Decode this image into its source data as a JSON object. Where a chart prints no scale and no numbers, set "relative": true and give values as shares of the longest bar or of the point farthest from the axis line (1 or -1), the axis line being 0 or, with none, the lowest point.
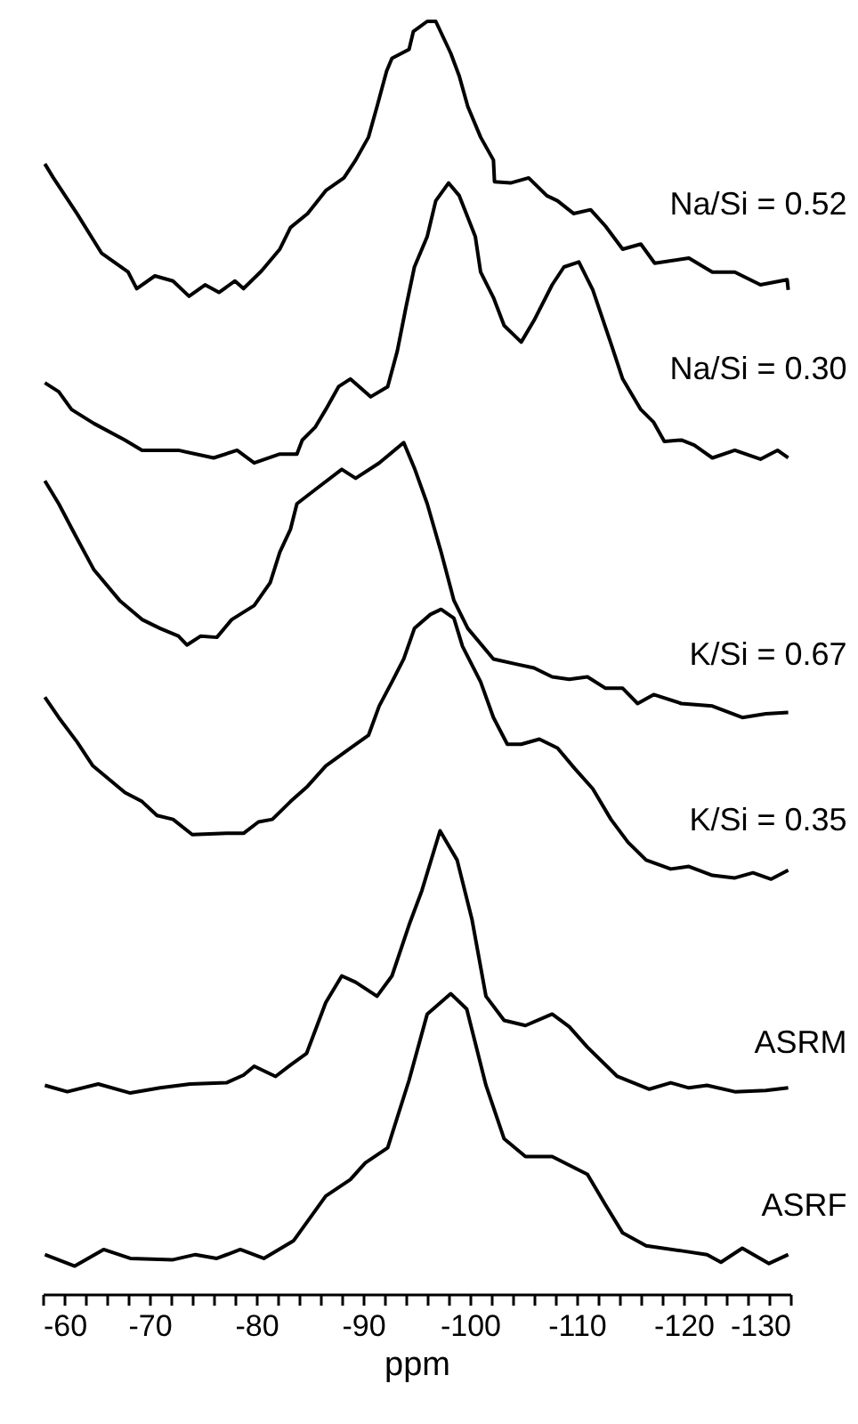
{
  "chart_data": {
    "type": "line",
    "relative": true,
    "xlabel": "ppm",
    "xlim": [
      -60,
      -130
    ],
    "xticks": [
      -60,
      {
        "value": -62,
        "label": null
      },
      {
        "value": -64,
        "label": null
      },
      {
        "value": -66,
        "label": null
      },
      {
        "value": -68,
        "label": null
      },
      -70,
      {
        "value": -72,
        "label": null
      },
      {
        "value": -74,
        "label": null
      },
      {
        "value": -76,
        "label": null
      },
      {
        "value": -78,
        "label": null
      },
      -80,
      {
        "value": -82,
        "label": null
      },
      {
        "value": -84,
        "label": null
      },
      {
        "value": -86,
        "label": null
      },
      {
        "value": -88,
        "label": null
      },
      -90,
      {
        "value": -92,
        "label": null
      },
      {
        "value": -94,
        "label": null
      },
      {
        "value": -96,
        "label": null
      },
      {
        "value": -98,
        "label": null
      },
      -100,
      {
        "value": -102,
        "label": null
      },
      {
        "value": -104,
        "label": null
      },
      {
        "value": -106,
        "label": null
      },
      {
        "value": -108,
        "label": null
      },
      -110,
      {
        "value": -112,
        "label": null
      },
      {
        "value": -114,
        "label": null
      },
      {
        "value": -116,
        "label": null
      },
      {
        "value": -118,
        "label": null
      },
      -120,
      {
        "value": -122,
        "label": null
      },
      {
        "value": -124,
        "label": null
      },
      {
        "value": -126,
        "label": null
      },
      {
        "value": -128,
        "label": null
      },
      -130
    ],
    "grid": false,
    "marker": "none",
    "line_style": "solid",
    "series": [
      {
        "name": "Na/Si = 0.52",
        "color": "#000000",
        "x": [
          -60.2,
          -61.0,
          -63.2,
          -65.5,
          -68.0,
          -68.8,
          -70.5,
          -72.2,
          -73.7,
          -75.2,
          -76.5,
          -78.0,
          -78.8,
          -80.5,
          -82.2,
          -83.2,
          -84.8,
          -86.5,
          -88.2,
          -89.3,
          -90.5,
          -91.3,
          -92.2,
          -92.7,
          -94.3,
          -94.7,
          -96.0,
          -96.8,
          -98.2,
          -99.0,
          -99.8,
          -101.0,
          -102.2,
          -102.3,
          -103.8,
          -105.5,
          -107.2,
          -108.2,
          -109.7,
          -111.3,
          -112.7,
          -114.3,
          -116.0,
          -117.3,
          -120.5,
          -122.7,
          -124.8,
          -127.2,
          -129.7,
          -129.8
        ],
        "values": [
          0.888,
          0.877,
          0.849,
          0.818,
          0.803,
          0.79,
          0.8,
          0.796,
          0.784,
          0.793,
          0.787,
          0.796,
          0.79,
          0.804,
          0.821,
          0.838,
          0.849,
          0.867,
          0.877,
          0.891,
          0.909,
          0.933,
          0.961,
          0.971,
          0.978,
          0.992,
          1.0,
          1.0,
          0.975,
          0.957,
          0.933,
          0.909,
          0.891,
          0.874,
          0.873,
          0.877,
          0.863,
          0.859,
          0.849,
          0.852,
          0.839,
          0.821,
          0.825,
          0.81,
          0.814,
          0.803,
          0.803,
          0.793,
          0.797,
          0.789
        ]
      },
      {
        "name": "Na/Si = 0.30",
        "color": "#000000",
        "x": [
          -60.2,
          -61.5,
          -62.7,
          -64.8,
          -67.7,
          -69.3,
          -72.7,
          -76.0,
          -78.2,
          -79.8,
          -82.2,
          -83.8,
          -84.3,
          -85.5,
          -86.5,
          -87.7,
          -88.8,
          -90.7,
          -92.3,
          -93.2,
          -94.0,
          -94.8,
          -96.0,
          -96.8,
          -98.0,
          -99.0,
          -100.5,
          -101.0,
          -102.2,
          -103.2,
          -104.8,
          -106.0,
          -107.7,
          -108.8,
          -110.2,
          -111.5,
          -113.2,
          -114.3,
          -116.0,
          -117.2,
          -118.2,
          -119.8,
          -121.0,
          -122.7,
          -124.8,
          -127.2,
          -128.8,
          -129.8
        ],
        "values": [
          0.716,
          0.709,
          0.695,
          0.684,
          0.671,
          0.663,
          0.663,
          0.657,
          0.663,
          0.653,
          0.66,
          0.66,
          0.671,
          0.681,
          0.695,
          0.713,
          0.719,
          0.705,
          0.713,
          0.741,
          0.775,
          0.807,
          0.831,
          0.859,
          0.873,
          0.863,
          0.831,
          0.803,
          0.783,
          0.761,
          0.748,
          0.765,
          0.793,
          0.807,
          0.811,
          0.789,
          0.747,
          0.719,
          0.695,
          0.685,
          0.67,
          0.671,
          0.667,
          0.657,
          0.663,
          0.656,
          0.663,
          0.657
        ]
      },
      {
        "name": "K/Si = 0.67",
        "color": "#000000",
        "x": [
          -60.2,
          -61.5,
          -63.0,
          -64.8,
          -67.2,
          -69.3,
          -71.0,
          -72.7,
          -73.5,
          -74.8,
          -76.3,
          -77.7,
          -79.8,
          -81.3,
          -82.2,
          -83.2,
          -83.8,
          -85.5,
          -88.0,
          -89.3,
          -91.5,
          -93.8,
          -94.8,
          -96.0,
          -97.3,
          -98.5,
          -99.8,
          -102.2,
          -104.3,
          -106.0,
          -107.7,
          -109.3,
          -111.0,
          -112.7,
          -114.3,
          -115.7,
          -117.2,
          -119.8,
          -122.7,
          -125.5,
          -127.7,
          -129.8
        ],
        "values": [
          0.639,
          0.621,
          0.597,
          0.569,
          0.545,
          0.53,
          0.523,
          0.517,
          0.51,
          0.517,
          0.516,
          0.53,
          0.541,
          0.559,
          0.583,
          0.601,
          0.621,
          0.632,
          0.648,
          0.641,
          0.653,
          0.669,
          0.649,
          0.621,
          0.583,
          0.545,
          0.523,
          0.499,
          0.495,
          0.492,
          0.485,
          0.483,
          0.485,
          0.476,
          0.476,
          0.464,
          0.471,
          0.464,
          0.462,
          0.453,
          0.456,
          0.457
        ]
      },
      {
        "name": "K/Si = 0.35",
        "color": "#000000",
        "x": [
          -60.2,
          -61.5,
          -63.2,
          -64.7,
          -66.0,
          -67.7,
          -69.3,
          -70.7,
          -72.2,
          -74.0,
          -77.2,
          -78.8,
          -80.2,
          -81.5,
          -83.2,
          -84.8,
          -86.5,
          -88.8,
          -90.5,
          -91.5,
          -92.7,
          -93.8,
          -94.8,
          -96.3,
          -97.3,
          -98.5,
          -99.3,
          -101.0,
          -102.2,
          -103.5,
          -104.8,
          -106.5,
          -108.2,
          -109.8,
          -111.5,
          -113.2,
          -114.8,
          -116.5,
          -118.8,
          -120.5,
          -122.7,
          -124.8,
          -126.5,
          -128.2,
          -129.8
        ],
        "values": [
          0.469,
          0.453,
          0.434,
          0.415,
          0.406,
          0.394,
          0.387,
          0.376,
          0.373,
          0.361,
          0.362,
          0.362,
          0.371,
          0.373,
          0.387,
          0.399,
          0.415,
          0.429,
          0.439,
          0.462,
          0.481,
          0.499,
          0.523,
          0.534,
          0.538,
          0.531,
          0.509,
          0.481,
          0.453,
          0.432,
          0.432,
          0.436,
          0.429,
          0.413,
          0.397,
          0.373,
          0.355,
          0.341,
          0.334,
          0.336,
          0.329,
          0.327,
          0.331,
          0.326,
          0.333
        ]
      },
      {
        "name": "ASRM",
        "color": "#000000",
        "x": [
          -60.2,
          -62.3,
          -65.2,
          -68.2,
          -71.0,
          -73.8,
          -77.2,
          -78.8,
          -79.8,
          -81.8,
          -83.2,
          -84.7,
          -86.5,
          -88.0,
          -89.3,
          -91.3,
          -92.7,
          -94.3,
          -95.5,
          -97.2,
          -98.8,
          -100.2,
          -101.5,
          -103.2,
          -105.2,
          -107.7,
          -109.3,
          -111.0,
          -113.8,
          -116.8,
          -118.8,
          -120.5,
          -122.2,
          -124.8,
          -127.7,
          -129.8
        ],
        "values": [
          0.164,
          0.159,
          0.165,
          0.158,
          0.162,
          0.165,
          0.166,
          0.172,
          0.179,
          0.171,
          0.18,
          0.189,
          0.229,
          0.25,
          0.245,
          0.234,
          0.25,
          0.29,
          0.317,
          0.364,
          0.341,
          0.294,
          0.234,
          0.215,
          0.211,
          0.22,
          0.21,
          0.194,
          0.171,
          0.161,
          0.166,
          0.162,
          0.164,
          0.159,
          0.16,
          0.162
        ]
      },
      {
        "name": "ASRF",
        "color": "#000000",
        "x": [
          -60.2,
          -63.0,
          -65.7,
          -68.2,
          -72.2,
          -74.3,
          -76.3,
          -78.5,
          -80.7,
          -83.5,
          -86.5,
          -88.8,
          -90.2,
          -92.3,
          -94.3,
          -96.0,
          -98.2,
          -99.7,
          -101.5,
          -103.2,
          -105.2,
          -107.7,
          -111.0,
          -112.7,
          -114.3,
          -116.5,
          -119.8,
          -122.2,
          -123.5,
          -125.5,
          -128.0,
          -129.8
        ],
        "values": [
          0.031,
          0.022,
          0.035,
          0.028,
          0.027,
          0.031,
          0.028,
          0.035,
          0.028,
          0.042,
          0.077,
          0.09,
          0.103,
          0.115,
          0.168,
          0.22,
          0.236,
          0.224,
          0.164,
          0.122,
          0.108,
          0.108,
          0.094,
          0.07,
          0.048,
          0.038,
          0.034,
          0.031,
          0.025,
          0.036,
          0.024,
          0.031
        ]
      }
    ]
  }
}
